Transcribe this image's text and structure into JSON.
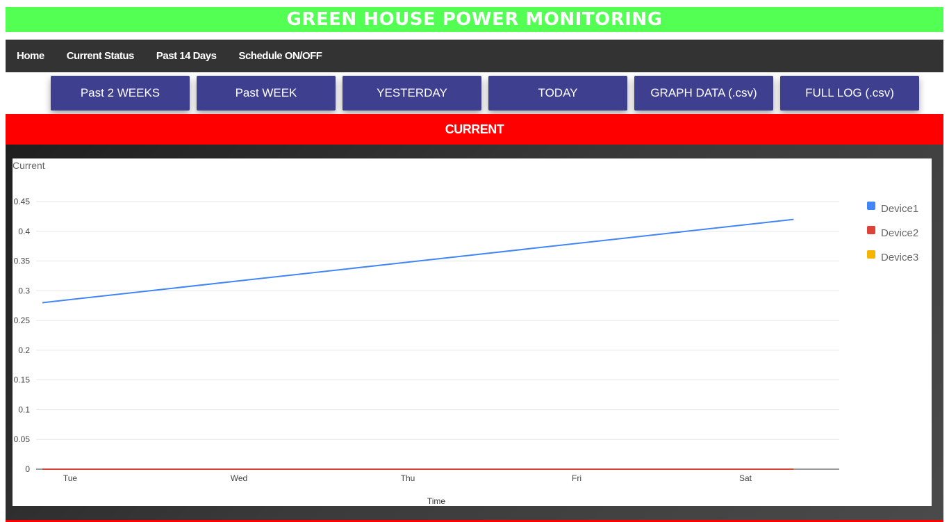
{
  "header": {
    "title": "GREEN HOUSE POWER MONITORING"
  },
  "nav": {
    "items": [
      {
        "label": "Home"
      },
      {
        "label": "Current Status"
      },
      {
        "label": "Past 14 Days"
      },
      {
        "label": "Schedule ON/OFF"
      }
    ]
  },
  "buttons": [
    {
      "label": "Past 2 WEEKS"
    },
    {
      "label": "Past WEEK"
    },
    {
      "label": "YESTERDAY"
    },
    {
      "label": "TODAY"
    },
    {
      "label": "GRAPH DATA (.csv)"
    },
    {
      "label": "FULL LOG (.csv)"
    }
  ],
  "section": {
    "title": "CURRENT"
  },
  "chart_data": {
    "type": "line",
    "title": "Current",
    "xlabel": "Time",
    "ylabel": "",
    "x": [
      "Tue",
      "Wed",
      "Thu",
      "Fri",
      "Sat"
    ],
    "ylim": [
      0,
      0.45
    ],
    "yticks": [
      "0",
      "0.05",
      "0.1",
      "0.15",
      "0.2",
      "0.25",
      "0.3",
      "0.35",
      "0.4",
      "0.45"
    ],
    "grid": true,
    "legend": "right",
    "series": [
      {
        "name": "Device1",
        "color": "#4285f4",
        "points": [
          {
            "x": 0,
            "y": 0.28
          },
          {
            "x": 4.45,
            "y": 0.42
          }
        ]
      },
      {
        "name": "Device2",
        "color": "#db4437",
        "points": [
          {
            "x": 0,
            "y": 0
          },
          {
            "x": 4.45,
            "y": 0
          }
        ]
      },
      {
        "name": "Device3",
        "color": "#f4b400",
        "points": [
          {
            "x": 0,
            "y": 0
          },
          {
            "x": 4.45,
            "y": 0
          }
        ]
      }
    ]
  }
}
